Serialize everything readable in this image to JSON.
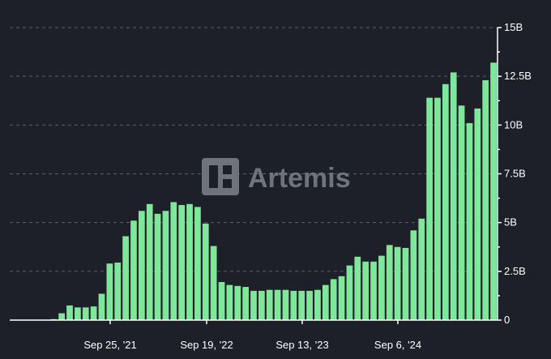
{
  "chart_data": {
    "type": "bar",
    "title": "",
    "xlabel": "",
    "ylabel": "",
    "x_tick_labels": [
      "Sep 25, '21",
      "Sep 19, '22",
      "Sep 13, '23",
      "Sep 6, '24"
    ],
    "y_tick_labels": [
      "0",
      "2.5B",
      "5B",
      "7.5B",
      "10B",
      "12.5B",
      "15B"
    ],
    "ylim": [
      0,
      15
    ],
    "y_unit": "B",
    "grid": true,
    "legend": "none",
    "bar_color": "#7fe79a",
    "watermark": "Artemis",
    "values": [
      0,
      0,
      0,
      0,
      0,
      0.05,
      0.35,
      0.75,
      0.65,
      0.65,
      0.7,
      1.35,
      2.9,
      2.95,
      4.3,
      5.1,
      5.6,
      5.95,
      5.45,
      5.6,
      6.05,
      5.9,
      5.95,
      5.8,
      4.95,
      3.8,
      1.95,
      1.8,
      1.75,
      1.7,
      1.5,
      1.5,
      1.55,
      1.55,
      1.55,
      1.5,
      1.5,
      1.5,
      1.55,
      1.8,
      2.1,
      2.25,
      2.8,
      3.25,
      3.0,
      3.0,
      3.3,
      3.85,
      3.75,
      3.7,
      4.6,
      5.2,
      11.4,
      11.4,
      12.1,
      12.7,
      11.0,
      10.1,
      10.85,
      12.3,
      13.2
    ]
  }
}
